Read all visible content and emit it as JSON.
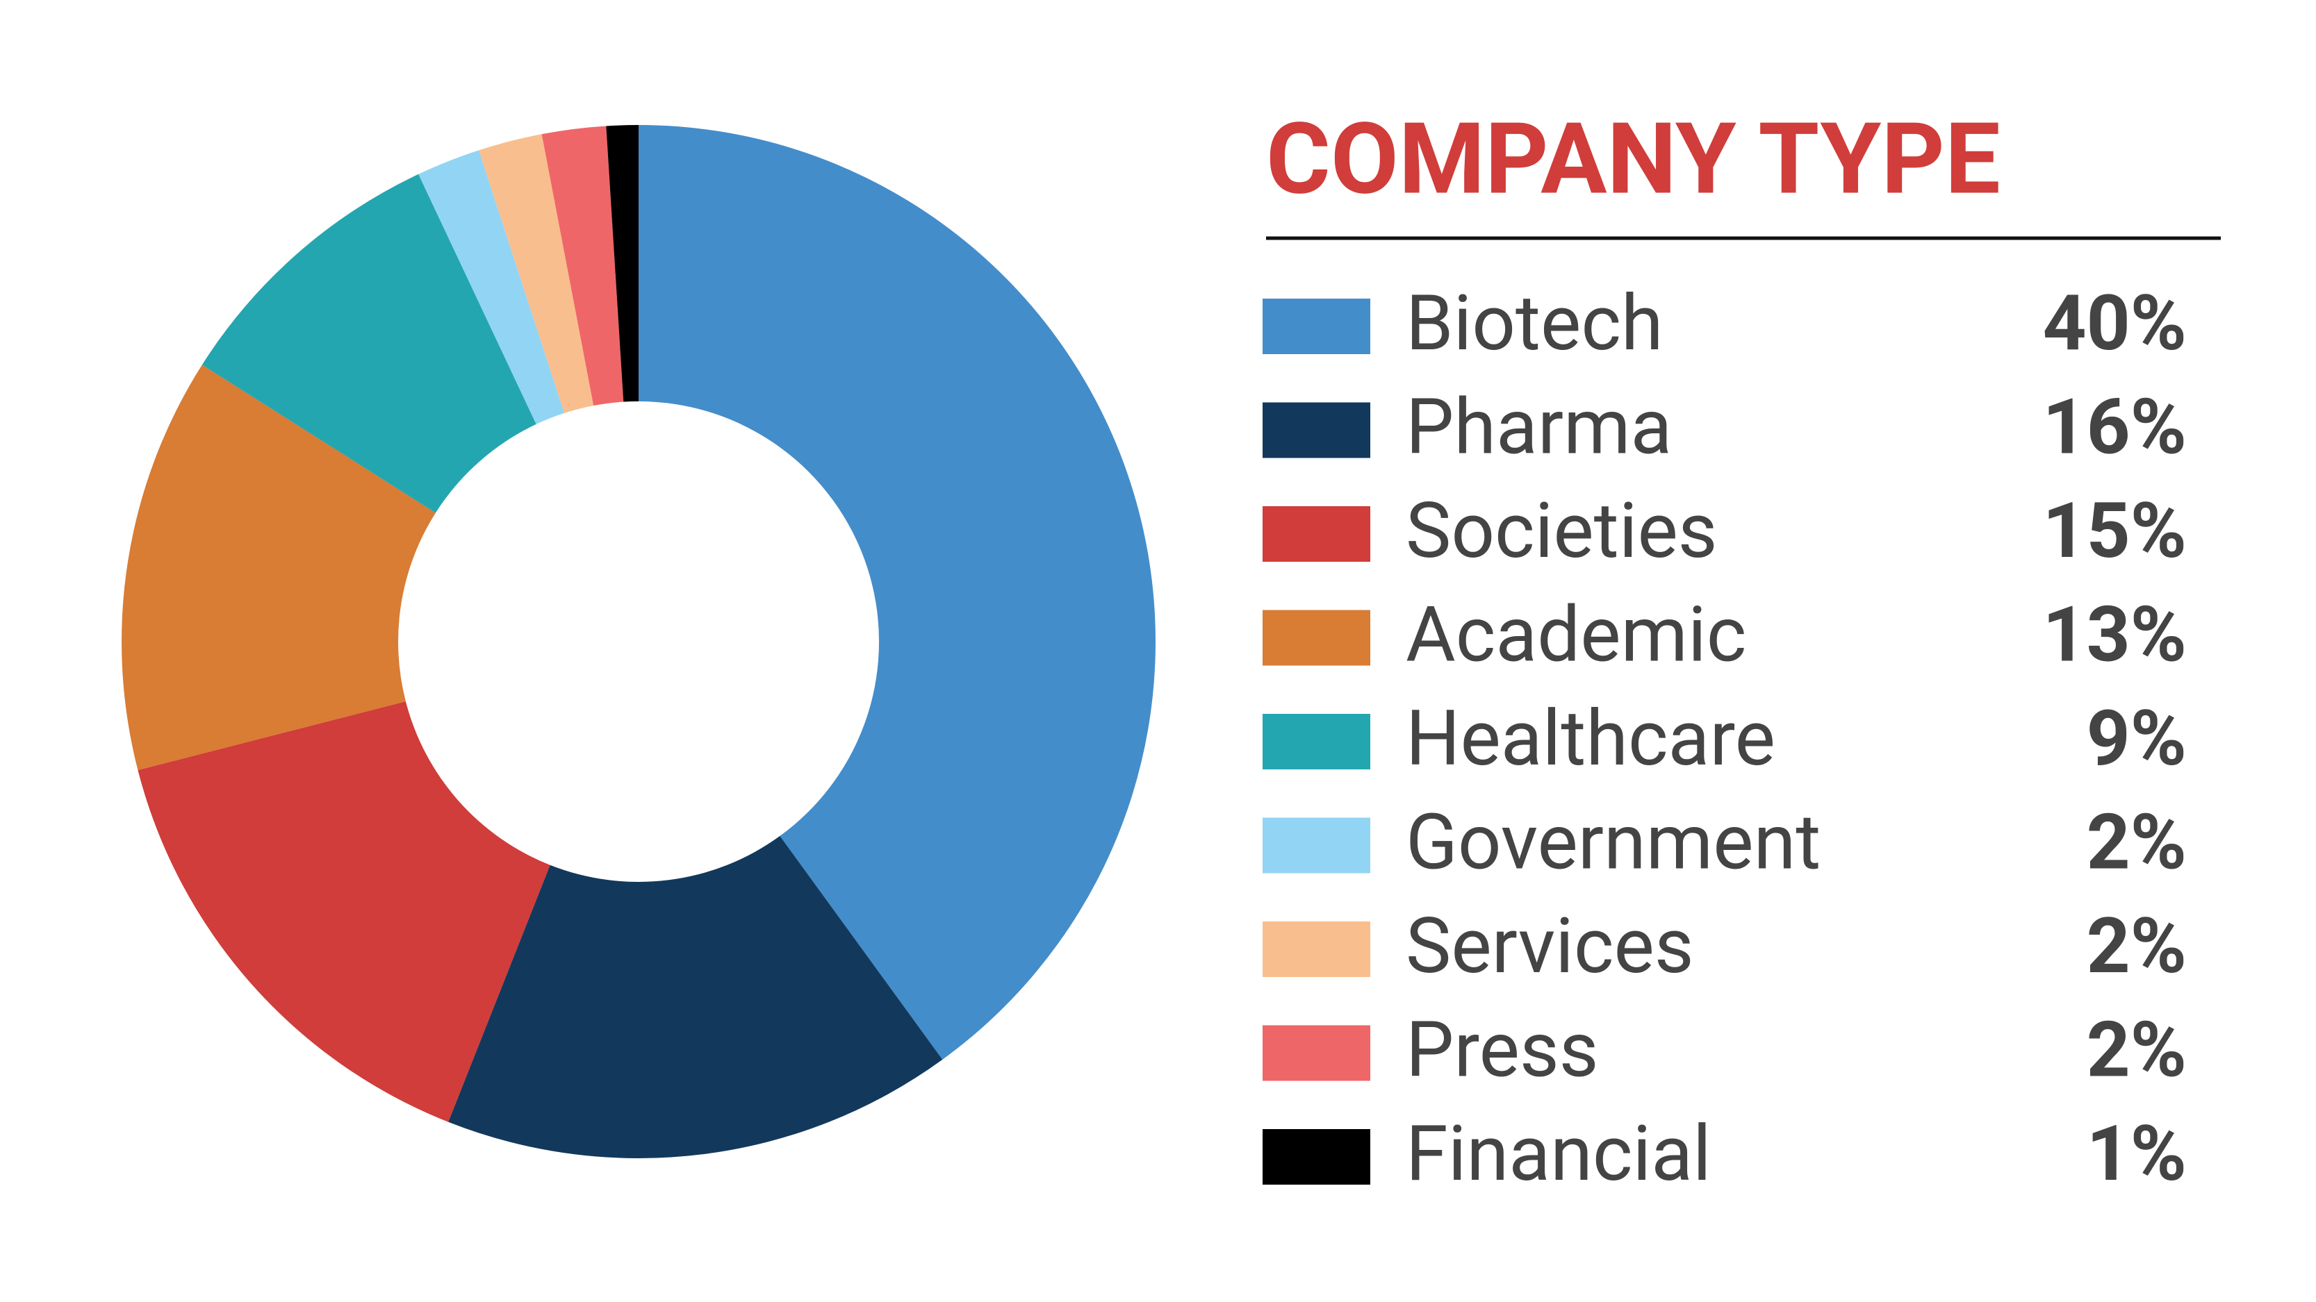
{
  "chart_data": {
    "type": "donut",
    "title": "COMPANY TYPE",
    "categories": [
      "Biotech",
      "Pharma",
      "Societies",
      "Academic",
      "Healthcare",
      "Government",
      "Services",
      "Press",
      "Financial"
    ],
    "values": [
      40,
      16,
      15,
      13,
      9,
      2,
      2,
      2,
      1
    ],
    "value_labels": [
      "40%",
      "16%",
      "15%",
      "13%",
      "9%",
      "2%",
      "2%",
      "2%",
      "1%"
    ],
    "colors": [
      "#448dcb",
      "#12395c",
      "#d03d3a",
      "#d97c34",
      "#24a6b0",
      "#92d4f4",
      "#f9be8e",
      "#ef6668",
      "#000000"
    ]
  }
}
